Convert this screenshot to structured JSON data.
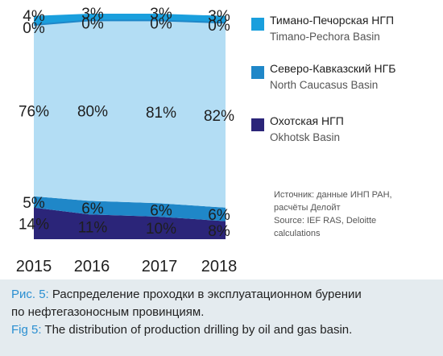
{
  "chart_data": {
    "type": "area",
    "stacked": true,
    "categories": [
      "2015",
      "2016",
      "2017",
      "2018"
    ],
    "ylim": [
      0,
      100
    ],
    "series": [
      {
        "name": "Охотская НГП",
        "name_en": "Okhotsk Basin",
        "values": [
          14,
          11,
          10,
          8
        ],
        "labels": [
          "14%",
          "11%",
          "10%",
          "8%"
        ],
        "color": "#2b2579"
      },
      {
        "name": "Северо-Кавказский НГБ",
        "name_en": "North Caucasus Basin",
        "values": [
          5,
          6,
          6,
          6
        ],
        "labels": [
          "5%",
          "6%",
          "6%",
          "6%"
        ],
        "color": "#1f87c8"
      },
      {
        "name": "Тимано-Печорская НГП",
        "name_en": "Timano-Pechora Basin",
        "values": [
          76,
          80,
          81,
          82
        ],
        "labels": [
          "76%",
          "80%",
          "81%",
          "82%"
        ],
        "color": "#b3ddf4"
      },
      {
        "name": "",
        "values": [
          0,
          0,
          0,
          0
        ],
        "labels": [
          "0%",
          "0%",
          "0%",
          "0%"
        ],
        "color": "#1f87c8"
      },
      {
        "name": "",
        "values": [
          4,
          3,
          3,
          3
        ],
        "labels": [
          "4%",
          "3%",
          "3%",
          "3%"
        ],
        "color": "#1a9fdd"
      }
    ],
    "legend": "right"
  },
  "legend_items": [
    {
      "ru": "Тимано-Печорская НГП",
      "en": "Timano-Pechora Basin",
      "color": "#1a9fdd"
    },
    {
      "ru": "Северо-Кавказский НГБ",
      "en": "North Caucasus Basin",
      "color": "#1f87c8"
    },
    {
      "ru": "Охотская НГП",
      "en": "Okhotsk Basin",
      "color": "#2b2579"
    }
  ],
  "source": {
    "line1": "Источник: данные ИНП РАН,",
    "line2": "расчёты Делойт",
    "line3": "Source: IEF RAS, Deloitte",
    "line4": "calculations"
  },
  "caption": {
    "ru_prefix": "Рис. 5:",
    "ru_line1": " Распределение проходки в эксплуатационном бурении",
    "ru_line2": "по нефтегазоносным провинциям.",
    "en_prefix": "Fig 5:",
    "en_text": " The distribution of production drilling by oil and gas basin."
  }
}
